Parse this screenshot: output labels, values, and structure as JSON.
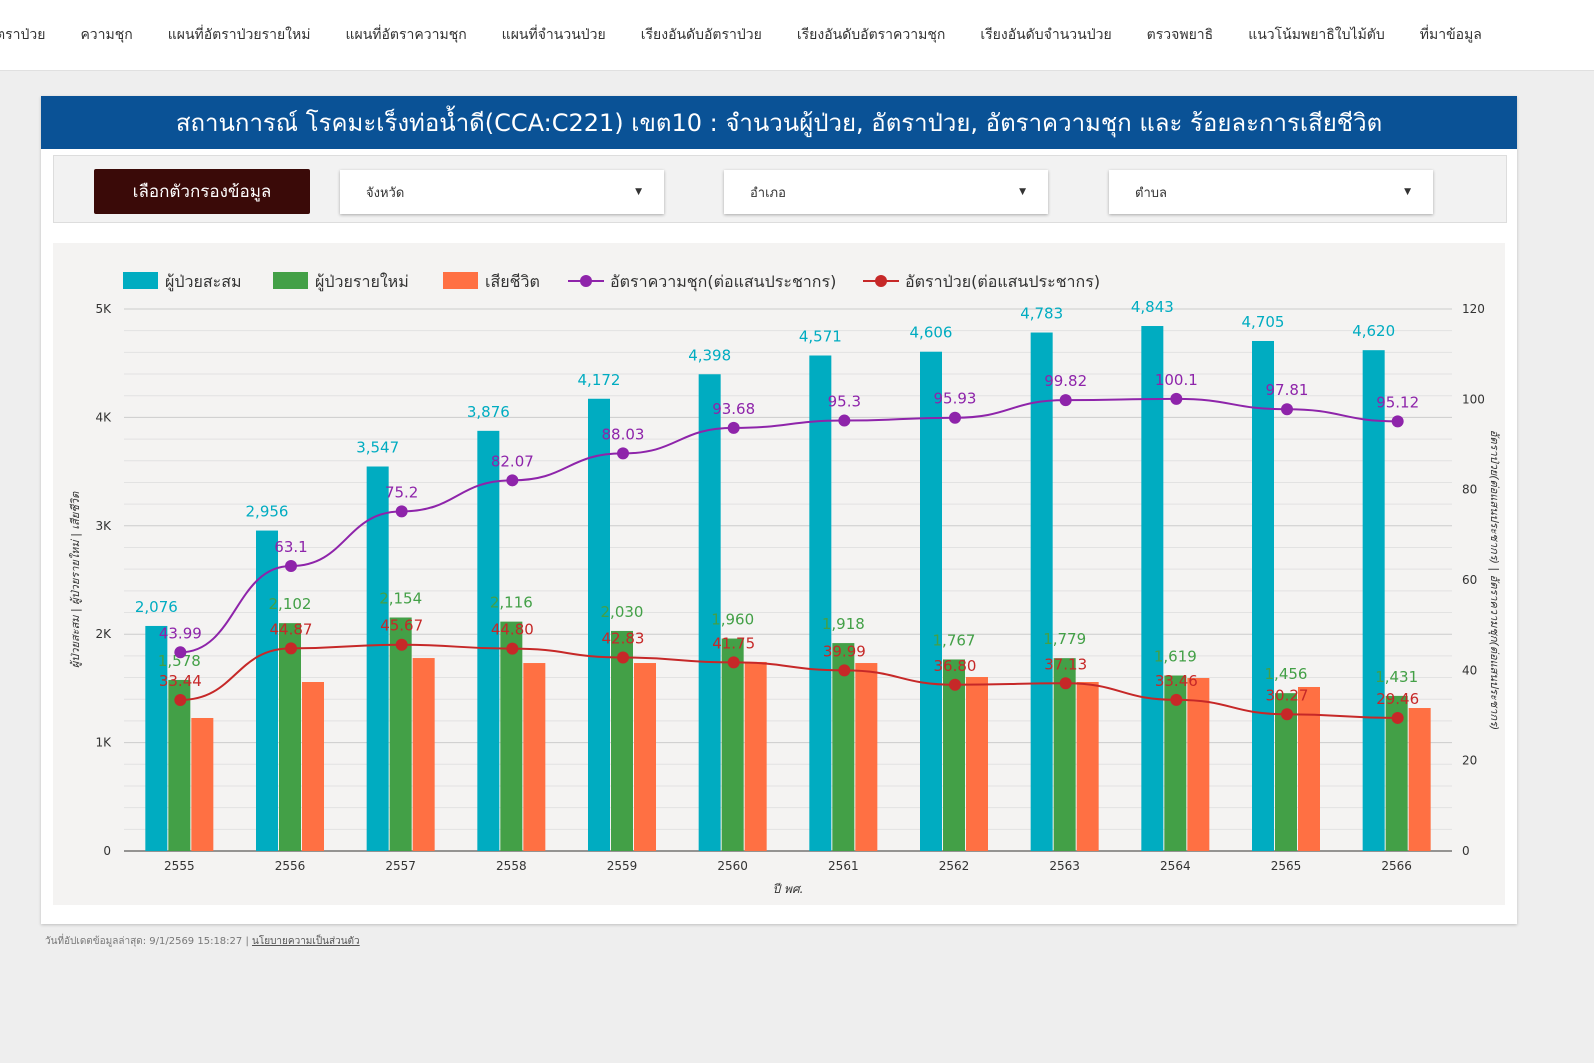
{
  "nav": [
    "ตราป่วย",
    "ความชุก",
    "แผนที่อัตราป่วยรายใหม่",
    "แผนที่อัตราความชุก",
    "แผนที่จำนวนป่วย",
    "เรียงอันดับอัตราป่วย",
    "เรียงอันดับอัตราความชุก",
    "เรียงอันดับจำนวนป่วย",
    "ตรวจพยาธิ",
    "แนวโน้มพยาธิใบไม้ตับ",
    "ที่มาข้อมูล"
  ],
  "title": "สถานการณ์ โรคมะเร็งท่อน้ำดี(CCA:C221) เขต10 : จำนวนผู้ป่วย, อัตราป่วย,  อัตราความชุก และ ร้อยละการเสียชีวิต",
  "filters": {
    "button": "เลือกตัวกรองข้อมูล",
    "province": "จังหวัด",
    "district": "อำเภอ",
    "subdistrict": "ตำบล"
  },
  "footer": {
    "updated": "วันที่อัปเดตข้อมูลล่าสุด: 9/1/2569 15:18:27",
    "privacy": "นโยบายความเป็นส่วนตัว"
  },
  "colors": {
    "cum": "#00acc1",
    "new": "#43a047",
    "death": "#ff7043",
    "prev": "#8e24aa",
    "rate": "#c62828"
  },
  "chart_data": {
    "type": "bar+line",
    "xlabel": "ปี พศ.",
    "ylabel": "ผู้ป่วยสะสม | ผู้ป่วยรายใหม่ | เสียชีวิต",
    "y2label": "อัตราป่วย(ต่อแสนประชากร) | อัตราความชุก(ต่อแสนประชากร)",
    "ylim": [
      0,
      5000
    ],
    "y2lim": [
      0,
      120
    ],
    "yticks": [
      "0",
      "1K",
      "2K",
      "3K",
      "4K",
      "5K"
    ],
    "y2ticks": [
      "0",
      "20",
      "40",
      "60",
      "80",
      "100",
      "120"
    ],
    "categories": [
      "2555",
      "2556",
      "2557",
      "2558",
      "2559",
      "2560",
      "2561",
      "2562",
      "2563",
      "2564",
      "2565",
      "2566"
    ],
    "series": [
      {
        "name": "ผู้ป่วยสะสม",
        "kind": "bar",
        "values": [
          2076,
          2956,
          3547,
          3876,
          4172,
          4398,
          4571,
          4606,
          4783,
          4843,
          4705,
          4620
        ]
      },
      {
        "name": "ผู้ป่วยรายใหม่",
        "kind": "bar",
        "values": [
          1578,
          2102,
          2154,
          2116,
          2030,
          1960,
          1918,
          1767,
          1779,
          1619,
          1456,
          1431
        ]
      },
      {
        "name": "เสียชีวิต",
        "kind": "bar",
        "values": [
          1227,
          1559,
          1780,
          1734,
          1734,
          1744,
          1734,
          1605,
          1559,
          1596,
          1513,
          1319
        ]
      },
      {
        "name": "อัตราความชุก(ต่อแสนประชากร)",
        "kind": "line",
        "values": [
          43.99,
          63.1,
          75.2,
          82.07,
          88.03,
          93.68,
          95.3,
          95.93,
          99.82,
          100.1,
          97.81,
          95.12
        ]
      },
      {
        "name": "อัตราป่วย(ต่อแสนประชากร)",
        "kind": "line",
        "values": [
          33.44,
          44.87,
          45.67,
          44.8,
          42.83,
          41.75,
          39.99,
          36.8,
          37.13,
          33.46,
          30.27,
          29.46
        ]
      }
    ],
    "labels": {
      "cum": [
        "2,076",
        "2,956",
        "3,547",
        "3,876",
        "4,172",
        "4,398",
        "4,571",
        "4,606",
        "4,783",
        "4,843",
        "4,705",
        "4,620"
      ],
      "new": [
        "1,578",
        "2,102",
        "2,154",
        "2,116",
        "2,030",
        "1,960",
        "1,918",
        "1,767",
        "1,779",
        "1,619",
        "1,456",
        "1,431"
      ],
      "prev": [
        "43.99",
        "63.1",
        "75.2",
        "82.07",
        "88.03",
        "93.68",
        "95.3",
        "95.93",
        "99.82",
        "100.1",
        "97.81",
        "95.12"
      ],
      "rate": [
        "33.44",
        "44.87",
        "45.67",
        "44.80",
        "42.83",
        "41.75",
        "39.99",
        "36.80",
        "37.13",
        "33.46",
        "30.27",
        "29.46"
      ]
    },
    "legend_position": "top-left"
  }
}
